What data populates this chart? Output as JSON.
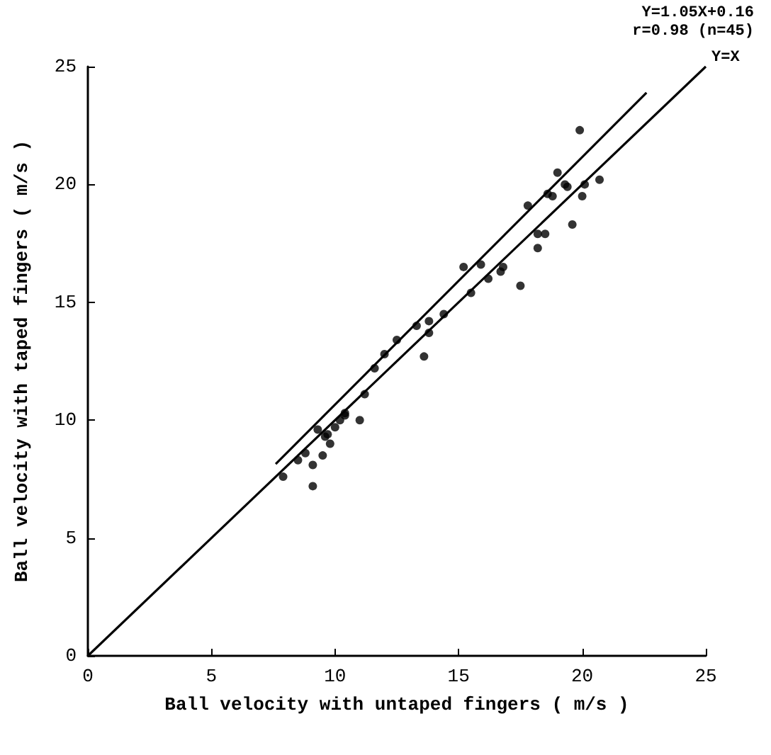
{
  "chart_data": {
    "type": "scatter",
    "xlabel": "Ball velocity with untaped fingers ( m/s )",
    "ylabel": "Ball velocity with taped fingers ( m/s )",
    "xlim": [
      0,
      25
    ],
    "ylim": [
      0,
      25
    ],
    "xticks": [
      0,
      5,
      10,
      15,
      20,
      25
    ],
    "yticks": [
      0,
      5,
      10,
      15,
      20,
      25
    ],
    "grid": false,
    "marker": "circle",
    "series": [
      {
        "color": "#000000",
        "x": [
          7.9,
          9.1,
          9.1,
          8.8,
          9.6,
          9.5,
          9.8,
          10.2,
          10.4,
          11.0,
          11.2,
          11.6,
          12.0,
          13.6,
          12.5,
          13.3,
          13.8,
          13.8,
          14.4,
          15.2,
          15.9,
          15.5,
          16.2,
          16.7,
          17.5,
          17.8,
          18.2,
          18.5,
          18.2,
          18.8,
          19.3,
          19.6,
          20.0,
          19.9,
          19.0,
          19.4,
          20.1,
          20.7,
          18.6,
          9.3,
          9.7,
          10.4,
          8.5,
          10.0,
          16.8
        ],
        "values": [
          7.6,
          7.2,
          8.1,
          8.6,
          9.3,
          8.5,
          9.0,
          10.0,
          10.2,
          10.0,
          11.1,
          12.2,
          12.8,
          12.7,
          13.4,
          14.0,
          14.2,
          13.7,
          14.5,
          16.5,
          16.6,
          15.4,
          16.0,
          16.3,
          15.7,
          19.1,
          17.9,
          17.9,
          17.3,
          19.5,
          20.0,
          18.3,
          19.5,
          22.3,
          20.5,
          19.9,
          20.0,
          20.2,
          19.6,
          9.6,
          9.4,
          10.3,
          8.3,
          9.7,
          16.5
        ]
      },
      {
        "type": "line",
        "marker": "none",
        "color": "#000000",
        "x": [
          7.6,
          22.6
        ],
        "values": [
          8.14,
          23.89
        ]
      },
      {
        "type": "line",
        "marker": "none",
        "color": "#000000",
        "x": [
          0,
          25
        ],
        "values": [
          0,
          25
        ]
      }
    ],
    "annotations": [
      "Y=1.05X+0.16",
      "r=0.98 (n=45)",
      {
        "text": "Y=X",
        "x": 25,
        "y": 25
      }
    ]
  }
}
